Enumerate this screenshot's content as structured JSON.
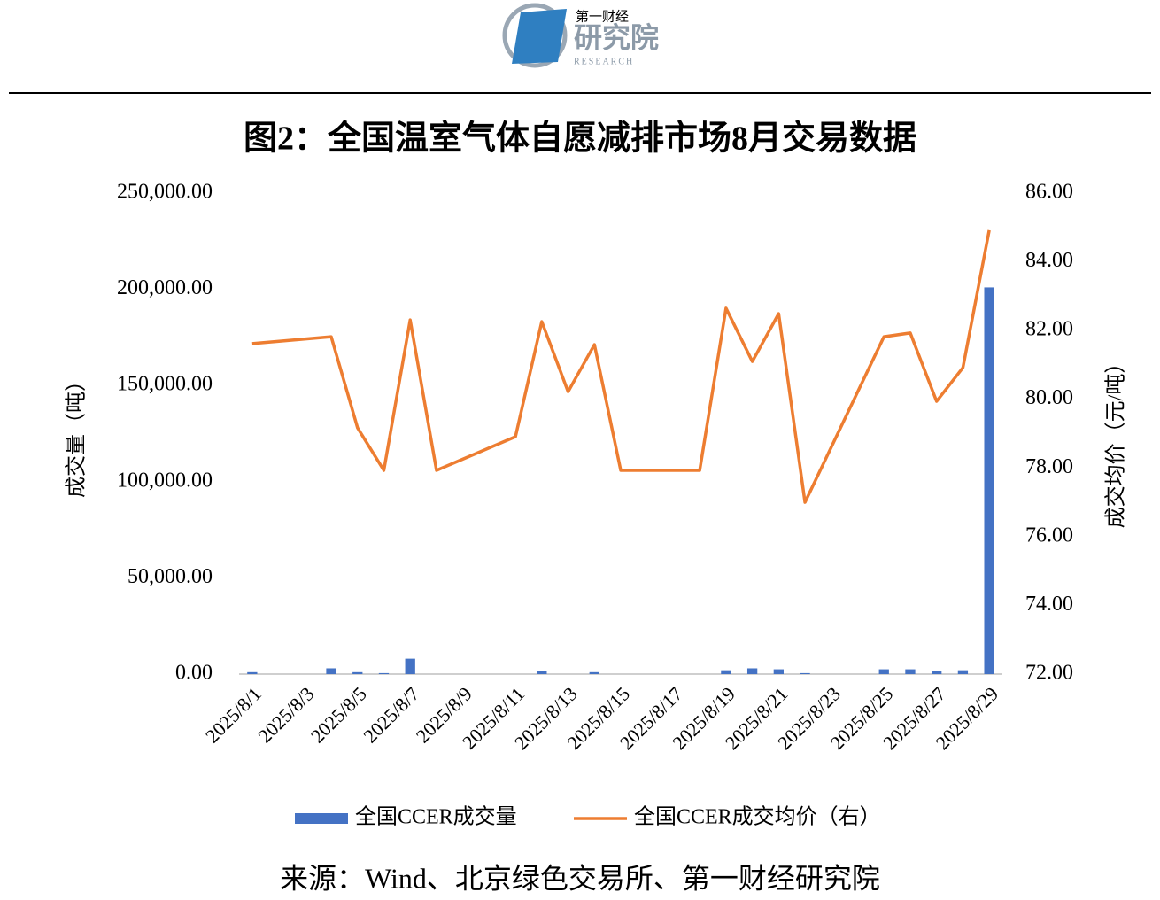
{
  "logo": {
    "brand": "第一财经",
    "name": "研究院",
    "sub": "RESEARCH"
  },
  "chart_data": {
    "type": "combo",
    "title": "图2：全国温室气体自愿减排市场8月交易数据",
    "y_label": "成交量（吨）",
    "y2_label": "成交均价（元/吨）",
    "source": "来源：Wind、北京绿色交易所、第一财经研究院",
    "categories": [
      "2025/8/1",
      null,
      "2025/8/3",
      null,
      "2025/8/5",
      null,
      "2025/8/7",
      null,
      "2025/8/9",
      null,
      "2025/8/11",
      null,
      "2025/8/13",
      null,
      "2025/8/15",
      null,
      "2025/8/17",
      null,
      "2025/8/19",
      null,
      "2025/8/21",
      null,
      "2025/8/23",
      null,
      "2025/8/25",
      null,
      "2025/8/27",
      null,
      "2025/8/29"
    ],
    "series": [
      {
        "name": "全国CCER成交量",
        "type": "bar",
        "color": "#4472c4",
        "values": [
          1000,
          null,
          null,
          3000,
          1000,
          500,
          8000,
          0,
          null,
          null,
          0,
          1500,
          0,
          1000,
          0,
          null,
          null,
          0,
          2000,
          3000,
          2500,
          500,
          null,
          null,
          2500,
          2500,
          1500,
          2000,
          201000
        ]
      },
      {
        "name": "全国CCER成交均价（右）",
        "type": "line",
        "axis": "y2",
        "color": "#ed7d31",
        "values": [
          81.62,
          null,
          null,
          81.82,
          79.17,
          77.93,
          82.31,
          77.93,
          null,
          null,
          78.91,
          82.26,
          80.22,
          81.59,
          77.93,
          null,
          null,
          77.93,
          82.65,
          81.1,
          82.49,
          77.0,
          null,
          null,
          81.82,
          81.93,
          79.94,
          80.92,
          84.92
        ]
      }
    ],
    "connect_gaps": true,
    "ylim": [
      0,
      250000
    ],
    "yticks": [
      {
        "value": 0,
        "label": "0.00"
      },
      {
        "value": 50000,
        "label": "50,000.00"
      },
      {
        "value": 100000,
        "label": "100,000.00"
      },
      {
        "value": 150000,
        "label": "150,000.00"
      },
      {
        "value": 200000,
        "label": "200,000.00"
      },
      {
        "value": 250000,
        "label": "250,000.00"
      }
    ],
    "y2lim": [
      72,
      86
    ],
    "y2ticks": [
      {
        "value": 72,
        "label": "72.00"
      },
      {
        "value": 74,
        "label": "74.00"
      },
      {
        "value": 76,
        "label": "76.00"
      },
      {
        "value": 78,
        "label": "78.00"
      },
      {
        "value": 80,
        "label": "80.00"
      },
      {
        "value": 82,
        "label": "82.00"
      },
      {
        "value": 84,
        "label": "84.00"
      },
      {
        "value": 86,
        "label": "86.00"
      }
    ],
    "grid": false
  }
}
